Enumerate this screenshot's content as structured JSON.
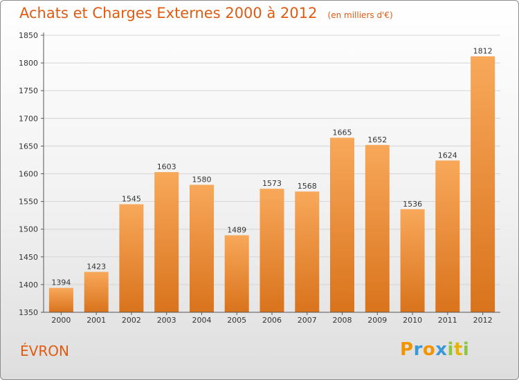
{
  "title": "Achats et Charges Externes 2000 à 2012",
  "subtitle": "(en milliers d'€)",
  "place": "ÉVRON",
  "logo": {
    "letters": [
      "P",
      "r",
      "o",
      "x",
      "i",
      "t",
      "i"
    ],
    "colors": [
      "#f29400",
      "#3a9ad9",
      "#f29400",
      "#3a9ad9",
      "#8cc63f",
      "#e8b200",
      "#8cc63f"
    ]
  },
  "colors": {
    "bar_top": "#f8a85a",
    "bar_bottom": "#d9731c",
    "text_accent": "#e05a10",
    "grid": "#d4d4d4"
  },
  "chart_data": {
    "type": "bar",
    "categories": [
      "2000",
      "2001",
      "2002",
      "2003",
      "2004",
      "2005",
      "2006",
      "2007",
      "2008",
      "2009",
      "2010",
      "2011",
      "2012"
    ],
    "values": [
      1394,
      1423,
      1545,
      1603,
      1580,
      1489,
      1573,
      1568,
      1665,
      1652,
      1536,
      1624,
      1812
    ],
    "yticks": [
      1350,
      1400,
      1450,
      1500,
      1550,
      1600,
      1650,
      1700,
      1750,
      1800,
      1850
    ],
    "ylim": [
      1350,
      1850
    ],
    "grid": true
  }
}
